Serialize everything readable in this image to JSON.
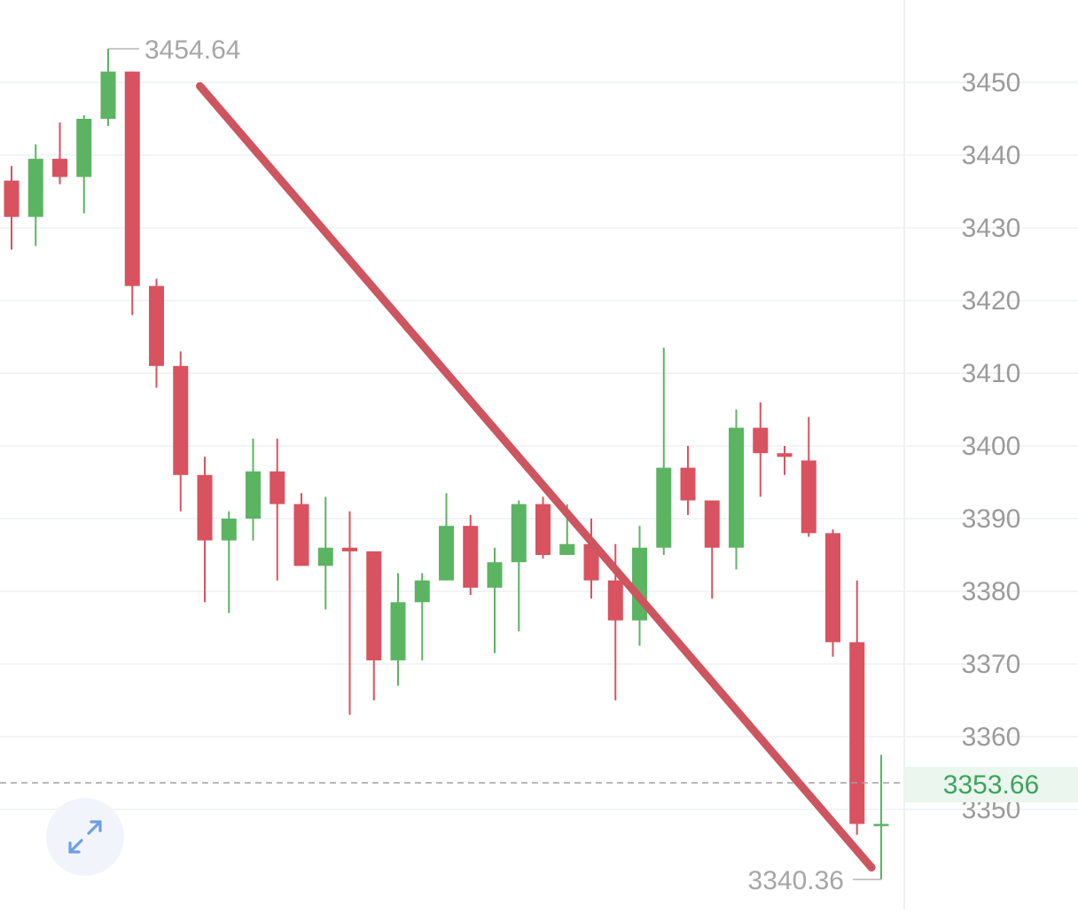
{
  "chart_data": {
    "type": "candlestick",
    "y_axis": {
      "ticks": [
        3450,
        3440,
        3430,
        3420,
        3410,
        3400,
        3390,
        3380,
        3370,
        3360,
        3350
      ],
      "position": "right",
      "ylim": [
        3338,
        3460
      ]
    },
    "grid": true,
    "candles": [
      {
        "open": 3436.5,
        "close": 3431.5,
        "high": 3438.5,
        "low": 3427.0
      },
      {
        "open": 3431.5,
        "close": 3439.5,
        "high": 3441.5,
        "low": 3427.5
      },
      {
        "open": 3439.5,
        "close": 3437.0,
        "high": 3444.5,
        "low": 3436.0
      },
      {
        "open": 3437.0,
        "close": 3445.0,
        "high": 3445.5,
        "low": 3432.0
      },
      {
        "open": 3445.0,
        "close": 3451.5,
        "high": 3454.64,
        "low": 3444.0
      },
      {
        "open": 3451.5,
        "close": 3422.0,
        "high": 3451.5,
        "low": 3418.0
      },
      {
        "open": 3422.0,
        "close": 3411.0,
        "high": 3423.0,
        "low": 3408.0
      },
      {
        "open": 3411.0,
        "close": 3396.0,
        "high": 3413.0,
        "low": 3391.0
      },
      {
        "open": 3396.0,
        "close": 3387.0,
        "high": 3398.5,
        "low": 3378.5
      },
      {
        "open": 3387.0,
        "close": 3390.0,
        "high": 3391.0,
        "low": 3377.0
      },
      {
        "open": 3390.0,
        "close": 3396.5,
        "high": 3401.0,
        "low": 3387.0
      },
      {
        "open": 3396.5,
        "close": 3392.0,
        "high": 3401.0,
        "low": 3381.5
      },
      {
        "open": 3392.0,
        "close": 3383.5,
        "high": 3393.5,
        "low": 3383.5
      },
      {
        "open": 3383.5,
        "close": 3386.0,
        "high": 3393.0,
        "low": 3377.5
      },
      {
        "open": 3386.0,
        "close": 3385.5,
        "high": 3391.0,
        "low": 3363.0
      },
      {
        "open": 3385.5,
        "close": 3370.5,
        "high": 3385.5,
        "low": 3365.0
      },
      {
        "open": 3370.5,
        "close": 3378.5,
        "high": 3382.5,
        "low": 3367.0
      },
      {
        "open": 3378.5,
        "close": 3381.5,
        "high": 3382.5,
        "low": 3370.5
      },
      {
        "open": 3381.5,
        "close": 3389.0,
        "high": 3393.5,
        "low": 3381.5
      },
      {
        "open": 3389.0,
        "close": 3380.5,
        "high": 3390.5,
        "low": 3379.5
      },
      {
        "open": 3380.5,
        "close": 3384.0,
        "high": 3386.0,
        "low": 3371.5
      },
      {
        "open": 3384.0,
        "close": 3392.0,
        "high": 3392.5,
        "low": 3374.5
      },
      {
        "open": 3392.0,
        "close": 3385.0,
        "high": 3393.0,
        "low": 3384.5
      },
      {
        "open": 3385.0,
        "close": 3386.5,
        "high": 3392.0,
        "low": 3385.0
      },
      {
        "open": 3386.5,
        "close": 3381.5,
        "high": 3390.0,
        "low": 3379.0
      },
      {
        "open": 3381.5,
        "close": 3376.0,
        "high": 3386.5,
        "low": 3365.0
      },
      {
        "open": 3376.0,
        "close": 3386.0,
        "high": 3389.0,
        "low": 3372.5
      },
      {
        "open": 3386.0,
        "close": 3397.0,
        "high": 3413.5,
        "low": 3385.0
      },
      {
        "open": 3397.0,
        "close": 3392.5,
        "high": 3400.0,
        "low": 3390.5
      },
      {
        "open": 3392.5,
        "close": 3386.0,
        "high": 3392.5,
        "low": 3379.0
      },
      {
        "open": 3386.0,
        "close": 3402.5,
        "high": 3405.0,
        "low": 3383.0
      },
      {
        "open": 3402.5,
        "close": 3399.0,
        "high": 3406.0,
        "low": 3393.0
      },
      {
        "open": 3399.0,
        "close": 3398.5,
        "high": 3400.0,
        "low": 3396.0
      },
      {
        "open": 3398.0,
        "close": 3388.0,
        "high": 3404.0,
        "low": 3387.5
      },
      {
        "open": 3388.0,
        "close": 3373.0,
        "high": 3388.5,
        "low": 3371.0
      },
      {
        "open": 3373.0,
        "close": 3348.0,
        "high": 3381.5,
        "low": 3346.5
      },
      {
        "open": 3348.0,
        "close": 3348.0,
        "high": 3357.5,
        "low": 3340.36
      }
    ],
    "annotations": {
      "high_label": "3454.64",
      "low_label": "3340.36",
      "current_price_label": "3353.66",
      "current_price": 3353.66,
      "trendline": {
        "from": {
          "candle": 7.8,
          "price": 3449.5
        },
        "to": {
          "candle": 35.6,
          "price": 3342.0
        }
      }
    },
    "colors": {
      "up": "#5bb462",
      "down": "#d9525f",
      "trendline": "#cd5560",
      "grid": "#eef0f3",
      "axis_text": "#9b9b9b",
      "current_price_text": "#3fa35c",
      "current_price_bg": "#eaf6ee"
    }
  },
  "ui": {
    "expand_icon": "expand-arrows-icon"
  }
}
